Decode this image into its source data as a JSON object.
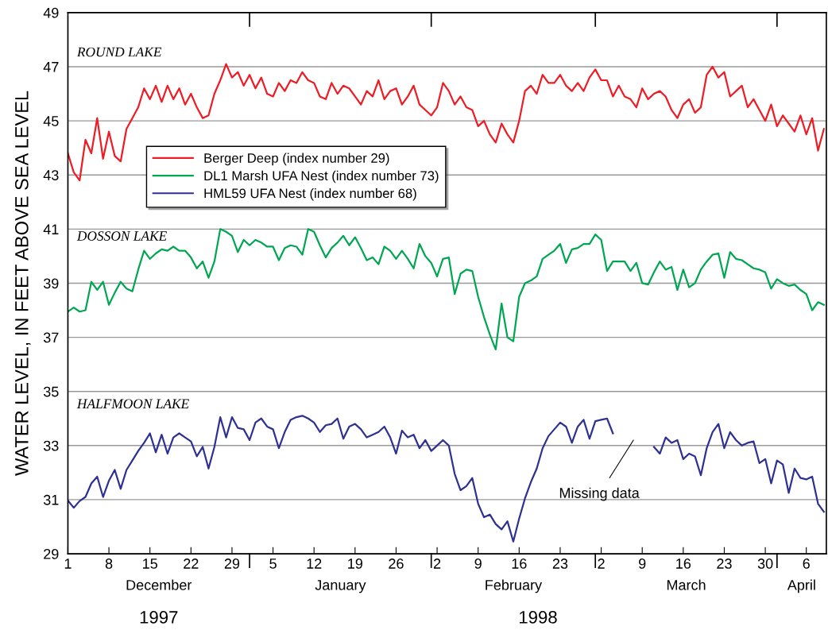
{
  "chart_data": {
    "type": "line",
    "ylabel": "WATER LEVEL, IN FEET ABOVE SEA LEVEL",
    "x": [
      "1997-12-01",
      "1997-12-02",
      "1997-12-03",
      "1997-12-04",
      "1997-12-05",
      "1997-12-06",
      "1997-12-07",
      "1997-12-08",
      "1997-12-09",
      "1997-12-10",
      "1997-12-11",
      "1997-12-12",
      "1997-12-13",
      "1997-12-14",
      "1997-12-15",
      "1997-12-16",
      "1997-12-17",
      "1997-12-18",
      "1997-12-19",
      "1997-12-20",
      "1997-12-21",
      "1997-12-22",
      "1997-12-23",
      "1997-12-24",
      "1997-12-25",
      "1997-12-26",
      "1997-12-27",
      "1997-12-28",
      "1997-12-29",
      "1997-12-30",
      "1997-12-31",
      "1998-01-01",
      "1998-01-02",
      "1998-01-03",
      "1998-01-04",
      "1998-01-05",
      "1998-01-06",
      "1998-01-07",
      "1998-01-08",
      "1998-01-09",
      "1998-01-10",
      "1998-01-11",
      "1998-01-12",
      "1998-01-13",
      "1998-01-14",
      "1998-01-15",
      "1998-01-16",
      "1998-01-17",
      "1998-01-18",
      "1998-01-19",
      "1998-01-20",
      "1998-01-21",
      "1998-01-22",
      "1998-01-23",
      "1998-01-24",
      "1998-01-25",
      "1998-01-26",
      "1998-01-27",
      "1998-01-28",
      "1998-01-29",
      "1998-01-30",
      "1998-01-31",
      "1998-02-01",
      "1998-02-02",
      "1998-02-03",
      "1998-02-04",
      "1998-02-05",
      "1998-02-06",
      "1998-02-07",
      "1998-02-08",
      "1998-02-09",
      "1998-02-10",
      "1998-02-11",
      "1998-02-12",
      "1998-02-13",
      "1998-02-14",
      "1998-02-15",
      "1998-02-16",
      "1998-02-17",
      "1998-02-18",
      "1998-02-19",
      "1998-02-20",
      "1998-02-21",
      "1998-02-22",
      "1998-02-23",
      "1998-02-24",
      "1998-02-25",
      "1998-02-26",
      "1998-02-27",
      "1998-02-28",
      "1998-03-01",
      "1998-03-02",
      "1998-03-03",
      "1998-03-04",
      "1998-03-05",
      "1998-03-06",
      "1998-03-07",
      "1998-03-08",
      "1998-03-09",
      "1998-03-10",
      "1998-03-11",
      "1998-03-12",
      "1998-03-13",
      "1998-03-14",
      "1998-03-15",
      "1998-03-16",
      "1998-03-17",
      "1998-03-18",
      "1998-03-19",
      "1998-03-20",
      "1998-03-21",
      "1998-03-22",
      "1998-03-23",
      "1998-03-24",
      "1998-03-25",
      "1998-03-26",
      "1998-03-27",
      "1998-03-28",
      "1998-03-29",
      "1998-03-30",
      "1998-03-31",
      "1998-04-01",
      "1998-04-02",
      "1998-04-03",
      "1998-04-04",
      "1998-04-05",
      "1998-04-06",
      "1998-04-07",
      "1998-04-08",
      "1998-04-09"
    ],
    "series": [
      {
        "name": "Berger Deep (index number 29)",
        "color": "#ee1c25",
        "values": [
          43.8,
          43.1,
          42.8,
          44.3,
          43.8,
          45.1,
          43.6,
          44.6,
          43.7,
          43.5,
          44.7,
          45.1,
          45.5,
          46.2,
          45.8,
          46.3,
          45.7,
          46.3,
          45.8,
          46.2,
          45.6,
          46.0,
          45.5,
          45.1,
          45.2,
          46.0,
          46.5,
          47.1,
          46.6,
          46.8,
          46.3,
          46.7,
          46.2,
          46.6,
          46.0,
          45.9,
          46.4,
          46.1,
          46.5,
          46.4,
          46.8,
          46.5,
          46.4,
          45.9,
          45.8,
          46.4,
          46.0,
          46.3,
          46.2,
          45.9,
          45.6,
          46.1,
          45.9,
          46.5,
          45.8,
          46.1,
          46.2,
          45.6,
          45.9,
          46.3,
          45.6,
          45.4,
          45.2,
          45.5,
          46.4,
          46.1,
          45.6,
          45.9,
          45.5,
          45.4,
          44.8,
          45.0,
          44.5,
          44.2,
          44.9,
          44.5,
          44.2,
          45.0,
          46.1,
          46.3,
          46.0,
          46.7,
          46.4,
          46.4,
          46.7,
          46.3,
          46.1,
          46.4,
          46.1,
          46.6,
          46.9,
          46.5,
          46.5,
          45.9,
          46.3,
          45.9,
          45.8,
          45.5,
          46.2,
          45.8,
          46.0,
          46.1,
          45.9,
          45.4,
          45.1,
          45.6,
          45.8,
          45.3,
          45.5,
          46.7,
          47.0,
          46.6,
          46.8,
          45.9,
          46.1,
          46.3,
          45.5,
          45.8,
          45.4,
          45.0,
          45.6,
          44.8,
          45.2,
          44.9,
          44.6,
          45.2,
          44.5,
          45.1,
          43.9,
          44.7
        ]
      },
      {
        "name": "DL1 Marsh UFA Nest (index number 73)",
        "color": "#00a651",
        "values": [
          37.95,
          38.1,
          37.95,
          38.0,
          39.05,
          38.75,
          39.05,
          38.2,
          38.65,
          39.05,
          38.8,
          38.7,
          39.5,
          40.2,
          39.9,
          40.1,
          40.25,
          40.2,
          40.35,
          40.2,
          40.2,
          39.95,
          39.55,
          39.8,
          39.2,
          39.8,
          41.0,
          40.9,
          40.75,
          40.15,
          40.6,
          40.4,
          40.6,
          40.5,
          40.35,
          40.35,
          39.85,
          40.3,
          40.4,
          40.35,
          40.05,
          41.0,
          40.9,
          40.4,
          39.95,
          40.3,
          40.5,
          40.75,
          40.4,
          40.7,
          40.3,
          39.85,
          39.95,
          39.7,
          40.35,
          40.2,
          39.9,
          40.2,
          39.9,
          39.55,
          40.45,
          40.0,
          39.75,
          39.25,
          39.9,
          39.95,
          38.6,
          39.35,
          39.5,
          39.45,
          38.5,
          37.75,
          37.1,
          36.55,
          38.25,
          37.0,
          36.85,
          38.5,
          39.0,
          39.1,
          39.25,
          39.9,
          40.05,
          40.2,
          40.45,
          39.75,
          40.25,
          40.3,
          40.45,
          40.45,
          40.8,
          40.6,
          39.45,
          39.8,
          39.8,
          39.8,
          39.45,
          39.75,
          39.0,
          38.95,
          39.4,
          39.8,
          39.5,
          39.6,
          38.75,
          39.5,
          38.85,
          39.0,
          39.5,
          39.8,
          40.05,
          40.1,
          39.2,
          40.15,
          39.9,
          39.85,
          39.7,
          39.55,
          39.5,
          39.4,
          38.8,
          39.15,
          39.0,
          38.9,
          38.95,
          38.75,
          38.6,
          38.0,
          38.3,
          38.2
        ]
      },
      {
        "name": "HML59 UFA Nest (index number 68)",
        "color": "#2e3192",
        "values": [
          30.97,
          30.7,
          30.95,
          31.1,
          31.6,
          31.85,
          31.1,
          31.7,
          32.1,
          31.4,
          32.1,
          32.45,
          32.8,
          33.1,
          33.45,
          32.75,
          33.4,
          32.7,
          33.3,
          33.45,
          33.3,
          33.15,
          32.6,
          32.95,
          32.15,
          32.95,
          34.05,
          33.3,
          34.05,
          33.65,
          33.6,
          33.2,
          33.85,
          34.0,
          33.7,
          33.6,
          32.9,
          33.5,
          33.95,
          34.05,
          34.1,
          34.0,
          33.85,
          33.5,
          33.75,
          33.8,
          34.0,
          33.25,
          33.7,
          33.8,
          33.6,
          33.3,
          33.4,
          33.5,
          33.7,
          33.3,
          32.7,
          33.55,
          33.3,
          33.4,
          32.9,
          33.2,
          32.8,
          33.0,
          33.2,
          33.0,
          31.95,
          31.35,
          31.5,
          31.8,
          30.85,
          30.35,
          30.45,
          30.1,
          29.9,
          30.2,
          29.45,
          30.3,
          31.05,
          31.65,
          32.15,
          32.9,
          33.35,
          33.6,
          33.85,
          33.7,
          33.1,
          33.7,
          33.95,
          33.25,
          33.9,
          33.95,
          34.0,
          33.45,
          null,
          null,
          null,
          null,
          null,
          null,
          32.95,
          32.7,
          33.3,
          33.1,
          33.2,
          32.5,
          32.7,
          32.6,
          31.9,
          32.9,
          33.5,
          33.8,
          32.9,
          33.5,
          33.2,
          33.0,
          33.1,
          33.15,
          32.35,
          32.5,
          31.6,
          32.45,
          32.3,
          31.25,
          32.15,
          31.8,
          31.75,
          31.85,
          30.85,
          30.55
        ]
      }
    ],
    "xlim": [
      "1997-12-01",
      "1998-04-09T10:00"
    ],
    "xticks": [
      {
        "value": "1997-12-01",
        "label": "1"
      },
      {
        "value": "1997-12-08",
        "label": "8"
      },
      {
        "value": "1997-12-15",
        "label": "15"
      },
      {
        "value": "1997-12-22",
        "label": "22"
      },
      {
        "value": "1997-12-29",
        "label": "29"
      },
      {
        "value": "1998-01-05",
        "label": "5"
      },
      {
        "value": "1998-01-12",
        "label": "12"
      },
      {
        "value": "1998-01-19",
        "label": "19"
      },
      {
        "value": "1998-01-26",
        "label": "26"
      },
      {
        "value": "1998-02-02",
        "label": "2"
      },
      {
        "value": "1998-02-09",
        "label": "9"
      },
      {
        "value": "1998-02-16",
        "label": "16"
      },
      {
        "value": "1998-02-23",
        "label": "23"
      },
      {
        "value": "1998-03-02",
        "label": "2"
      },
      {
        "value": "1998-03-09",
        "label": "9"
      },
      {
        "value": "1998-03-16",
        "label": "16"
      },
      {
        "value": "1998-03-23",
        "label": "23"
      },
      {
        "value": "1998-03-30",
        "label": "30"
      },
      {
        "value": "1998-04-06",
        "label": "6"
      }
    ],
    "ylim": [
      29,
      49
    ],
    "yticks": [
      29,
      31,
      33,
      35,
      37,
      39,
      41,
      43,
      45,
      47,
      49
    ],
    "grid": "y",
    "legend": "top left",
    "annotations": [
      "ROUND LAKE",
      "DOSSON LAKE",
      "HALFMOON LAKE",
      "Missing data",
      "December",
      "January",
      "February",
      "March",
      "April",
      "1997",
      "1998"
    ]
  }
}
